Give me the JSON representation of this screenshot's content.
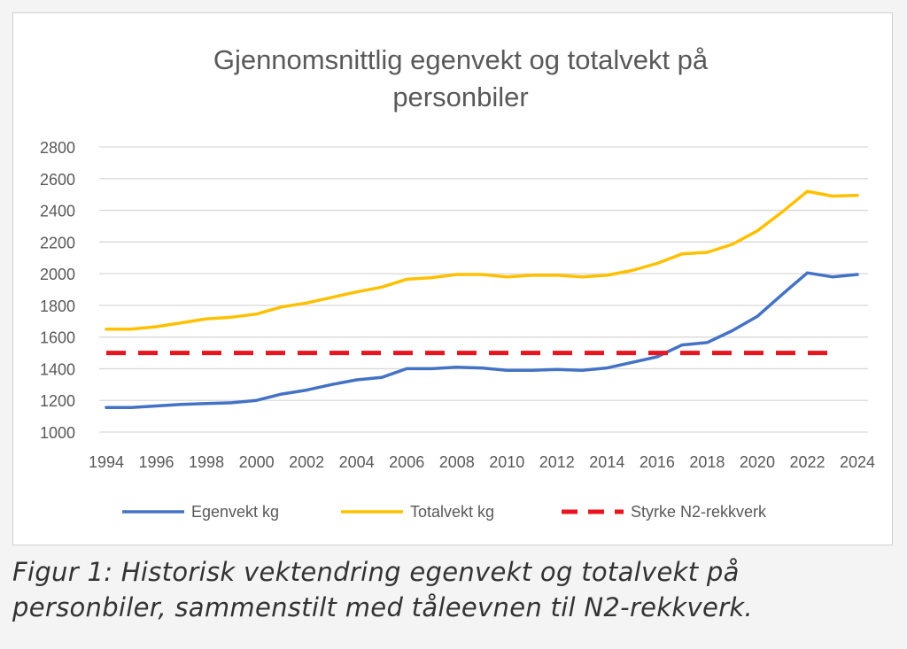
{
  "chart_data": {
    "type": "line",
    "title_lines": [
      "Gjennomsnittlig egenvekt og totalvekt på",
      "personbiler"
    ],
    "ylim": [
      1000,
      2800
    ],
    "yticks": [
      1000,
      1200,
      1400,
      1600,
      1800,
      2000,
      2200,
      2400,
      2600,
      2800
    ],
    "xlim": [
      1994,
      2024
    ],
    "xticks": [
      1994,
      1996,
      1998,
      2000,
      2002,
      2004,
      2006,
      2008,
      2010,
      2012,
      2014,
      2016,
      2018,
      2020,
      2022,
      2024
    ],
    "grid": true,
    "legend_position": "bottom",
    "series": [
      {
        "name": "Egenvekt kg",
        "color": "#4472c4",
        "style": "solid",
        "x": [
          1994,
          1995,
          1996,
          1997,
          1998,
          1999,
          2000,
          2001,
          2002,
          2003,
          2004,
          2005,
          2006,
          2007,
          2008,
          2009,
          2010,
          2011,
          2012,
          2013,
          2014,
          2015,
          2016,
          2017,
          2018,
          2019,
          2020,
          2021,
          2022,
          2023,
          2024
        ],
        "y": [
          1155,
          1155,
          1165,
          1175,
          1180,
          1185,
          1200,
          1240,
          1265,
          1300,
          1330,
          1345,
          1400,
          1400,
          1410,
          1405,
          1390,
          1390,
          1395,
          1390,
          1405,
          1440,
          1475,
          1550,
          1565,
          1640,
          1730,
          1870,
          2005,
          1980,
          1995
        ]
      },
      {
        "name": "Totalvekt kg",
        "color": "#ffc000",
        "style": "solid",
        "x": [
          1994,
          1995,
          1996,
          1997,
          1998,
          1999,
          2000,
          2001,
          2002,
          2003,
          2004,
          2005,
          2006,
          2007,
          2008,
          2009,
          2010,
          2011,
          2012,
          2013,
          2014,
          2015,
          2016,
          2017,
          2018,
          2019,
          2020,
          2021,
          2022,
          2023,
          2024
        ],
        "y": [
          1650,
          1650,
          1665,
          1690,
          1715,
          1725,
          1745,
          1790,
          1815,
          1850,
          1885,
          1915,
          1965,
          1975,
          1995,
          1995,
          1980,
          1990,
          1990,
          1980,
          1990,
          2020,
          2065,
          2125,
          2135,
          2185,
          2270,
          2390,
          2520,
          2490,
          2495
        ]
      },
      {
        "name": "Styrke N2-rekkverk",
        "color": "#e8141f",
        "style": "dashed",
        "x": [
          1994,
          2023
        ],
        "y": [
          1500,
          1500
        ]
      }
    ]
  },
  "caption": {
    "line1": "Figur 1: Historisk vektendring egenvekt og totalvekt på",
    "line2": "personbiler, sammenstilt med tåleevnen til N2-rekkverk."
  }
}
